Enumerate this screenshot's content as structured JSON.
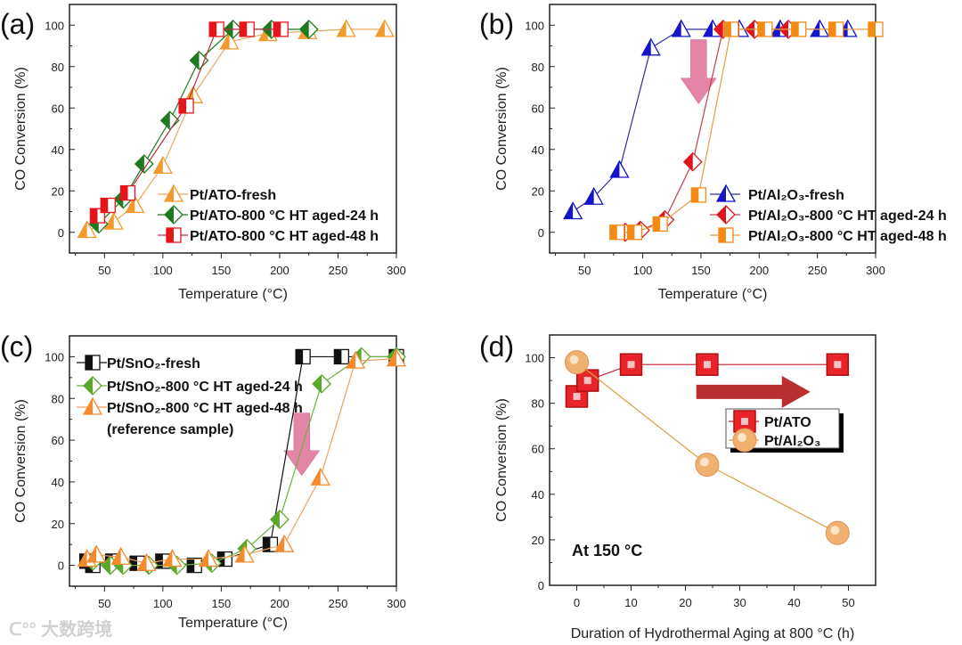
{
  "watermark": "大数跨境",
  "chart_data": [
    {
      "type": "line",
      "panel_label": "(a)",
      "xlabel": "Temperature (°C)",
      "ylabel": "CO Conversion (%)",
      "xlim": [
        20,
        300
      ],
      "ylim": [
        -10,
        110
      ],
      "xticks": [
        50,
        100,
        150,
        200,
        250,
        300
      ],
      "yticks": [
        0,
        20,
        40,
        60,
        80,
        100
      ],
      "legend_placement": "bottom-right",
      "series": [
        {
          "name": "Pt/ATO-fresh",
          "marker": "triangle",
          "color": "#f39a2c",
          "line": "#e8a860",
          "x": [
            35,
            58,
            76,
            100,
            126,
            157,
            190,
            224,
            257,
            290
          ],
          "y": [
            1,
            5,
            13,
            32,
            66,
            92,
            96,
            97,
            98,
            98
          ]
        },
        {
          "name": "Pt/ATO-800 °C HT aged-24 h",
          "marker": "diamond",
          "color": "#1e7a1e",
          "line": "#1e7a1e",
          "x": [
            45,
            66,
            84,
            106,
            131,
            160,
            193,
            225
          ],
          "y": [
            4,
            16,
            33,
            54,
            83,
            98,
            98,
            98
          ]
        },
        {
          "name": "Pt/ATO-800 °C HT aged-48 h",
          "marker": "square",
          "color": "#e8141c",
          "line": "#b03040",
          "x": [
            44,
            53,
            70,
            120,
            146,
            172,
            201
          ],
          "y": [
            8,
            13,
            19,
            61,
            98,
            98,
            98
          ]
        }
      ]
    },
    {
      "type": "line",
      "panel_label": "(b)",
      "xlabel": "Temperature (°C)",
      "ylabel": "CO Conversion (%)",
      "xlim": [
        20,
        300
      ],
      "ylim": [
        -10,
        110
      ],
      "xticks": [
        50,
        100,
        150,
        200,
        250,
        300
      ],
      "yticks": [
        0,
        20,
        40,
        60,
        80,
        100
      ],
      "legend_placement": "bottom-right",
      "annotation_arrow": {
        "x": 148,
        "y_from": 93,
        "y_to": 62,
        "color": "#e0709a"
      },
      "series": [
        {
          "name": "Pt/Al₂O₃-fresh",
          "marker": "triangle",
          "color": "#1414c8",
          "line": "#3030a0",
          "x": [
            40,
            58,
            80,
            107,
            133,
            160,
            183,
            218,
            252,
            276
          ],
          "y": [
            10,
            17,
            30,
            89,
            98,
            98,
            98,
            98,
            98,
            98
          ]
        },
        {
          "name": "Pt/Al₂O₃-800 °C HT aged-24 h",
          "marker": "diamond",
          "color": "#e0141c",
          "line": "#c04050",
          "x": [
            85,
            98,
            119,
            143,
            169,
            196,
            225
          ],
          "y": [
            0,
            1,
            6,
            34,
            98,
            98,
            98
          ]
        },
        {
          "name": "Pt/Al₂O₃-800 °C HT aged-48 h",
          "marker": "square",
          "color": "#f38a14",
          "line": "#e0a040",
          "x": [
            78,
            93,
            115,
            148,
            176,
            205,
            234,
            266,
            300
          ],
          "y": [
            0,
            0,
            4,
            18,
            98,
            98,
            98,
            98,
            98
          ]
        }
      ]
    },
    {
      "type": "line",
      "panel_label": "(c)",
      "xlabel": "Temperature (°C)",
      "ylabel": "CO Conversion (%)",
      "xlim": [
        20,
        300
      ],
      "ylim": [
        -10,
        110
      ],
      "xticks": [
        50,
        100,
        150,
        200,
        250,
        300
      ],
      "yticks": [
        0,
        20,
        40,
        60,
        80,
        100
      ],
      "legend_placement": "top-left",
      "legend_note": "(reference sample)",
      "annotation_arrow": {
        "x": 219,
        "y_from": 73,
        "y_to": 43,
        "color": "#e0709a"
      },
      "series": [
        {
          "name": "Pt/SnO₂-fresh",
          "marker": "square",
          "color": "#111111",
          "line": "#111111",
          "x": [
            35,
            40,
            57,
            78,
            100,
            127,
            153,
            192,
            220,
            253,
            300
          ],
          "y": [
            2,
            0,
            2,
            1,
            2,
            0,
            3,
            10,
            100,
            100,
            100
          ]
        },
        {
          "name": "Pt/SnO₂-800 °C HT aged-24 h",
          "marker": "diamond",
          "color": "#5aa82a",
          "line": "#6ab040",
          "x": [
            40,
            55,
            66,
            88,
            112,
            142,
            172,
            200,
            236,
            270,
            300
          ],
          "y": [
            2,
            0,
            0,
            0,
            0,
            1,
            8,
            22,
            87,
            100,
            100
          ]
        },
        {
          "name": "Pt/SnO₂-800 °C HT aged-48 h",
          "marker": "triangle",
          "color": "#f38a2c",
          "line": "#f0a060",
          "x": [
            35,
            43,
            64,
            86,
            108,
            139,
            170,
            204,
            235,
            265,
            300
          ],
          "y": [
            3,
            5,
            4,
            1,
            3,
            3,
            5,
            10,
            42,
            98,
            99
          ]
        }
      ]
    },
    {
      "type": "line",
      "panel_label": "(d)",
      "xlabel": "Duration of Hydrothermal Aging at 800 °C (h)",
      "ylabel": "CO Conversion (%)",
      "xlim": [
        -5,
        55
      ],
      "ylim": [
        0,
        110
      ],
      "xticks": [
        0,
        10,
        20,
        30,
        40,
        50
      ],
      "yticks": [
        0,
        20,
        40,
        60,
        80,
        100
      ],
      "legend_placement": "center-right",
      "annotation_text": "At 150 °C",
      "annotation_arrow": {
        "x_from": 22,
        "x_to": 43,
        "y": 85,
        "color": "#b01818"
      },
      "series": [
        {
          "name": "Pt/ATO",
          "marker": "bigsquare",
          "color": "#e8232a",
          "line": "#c02030",
          "x": [
            0,
            2,
            10,
            24,
            48
          ],
          "y": [
            83,
            90,
            97,
            97,
            97
          ]
        },
        {
          "name": "Pt/Al₂O₃",
          "marker": "circle",
          "color": "#f0b070",
          "line": "#d8a040",
          "x": [
            0,
            24,
            48
          ],
          "y": [
            98,
            53,
            23
          ]
        }
      ]
    }
  ]
}
